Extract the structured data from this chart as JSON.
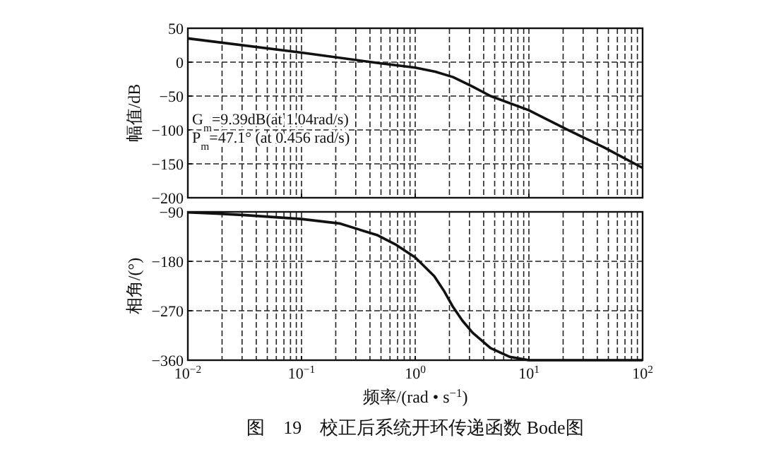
{
  "chart_data": [
    {
      "type": "line",
      "ylabel": "幅值/dB",
      "log": "x",
      "grid": true,
      "tick_labels": "y",
      "line_style": "solid",
      "marker": "none",
      "xlim": [
        0.01,
        100
      ],
      "xticks": [
        {
          "value": 0.01,
          "label": null
        },
        {
          "value": 0.1,
          "label": null
        },
        {
          "value": 1,
          "label": null
        },
        {
          "value": 10,
          "label": null
        },
        {
          "value": 100,
          "label": null
        }
      ],
      "ylim": [
        -200,
        50
      ],
      "yticks": [
        {
          "value": -200,
          "label": "−200"
        },
        {
          "value": -150,
          "label": "−150"
        },
        {
          "value": -100,
          "label": "−100"
        },
        {
          "value": -50,
          "label": "−50"
        },
        0,
        50
      ],
      "annotations": [
        "G$_{m}$=9.39dB(at 1.04rad/s)",
        "P$_{m}$=47.1°  (at 0.456 rad/s)"
      ],
      "series": [
        {
          "color": "#111111",
          "x": [
            0.01,
            0.1,
            0.46,
            1,
            1.5,
            2.15,
            3.2,
            4.6,
            10,
            21.5,
            46,
            100
          ],
          "values": [
            35,
            14,
            -1,
            -8,
            -14,
            -22,
            -36,
            -50,
            -71,
            -99,
            -126,
            -156
          ]
        }
      ]
    },
    {
      "type": "line",
      "xlabel": "频率/(rad • s$^{−1}$)",
      "ylabel": "相角/(°)",
      "log": "x",
      "grid": true,
      "line_style": "solid",
      "marker": "none",
      "xlim": [
        0.01,
        100
      ],
      "xticks": [
        {
          "value": 0.01,
          "label": "10$^{−2}$"
        },
        {
          "value": 0.1,
          "label": "10$^{−1}$"
        },
        {
          "value": 1,
          "label": "10$^{0}$"
        },
        {
          "value": 10,
          "label": "10$^{1}$"
        },
        {
          "value": 100,
          "label": "10$^{2}$"
        }
      ],
      "ylim": [
        -360,
        -90
      ],
      "yticks": [
        {
          "value": -360,
          "label": "−360"
        },
        {
          "value": -270,
          "label": "−270"
        },
        {
          "value": -180,
          "label": "−180"
        },
        {
          "value": -90,
          "label": "−90"
        }
      ],
      "annotations": [
        "图　19　校正后系统开环传递函数 Bode图"
      ],
      "series": [
        {
          "color": "#111111",
          "x": [
            0.01,
            0.0178,
            0.032,
            0.1,
            0.215,
            0.32,
            0.46,
            0.68,
            1,
            1.47,
            1.78,
            2.15,
            2.6,
            3.2,
            4.6,
            6.8,
            10,
            100
          ],
          "values": [
            -91,
            -93,
            -96,
            -103,
            -111,
            -122,
            -132,
            -150,
            -173,
            -207,
            -233,
            -263,
            -288,
            -310,
            -338,
            -354,
            -360,
            -360
          ]
        }
      ]
    }
  ]
}
